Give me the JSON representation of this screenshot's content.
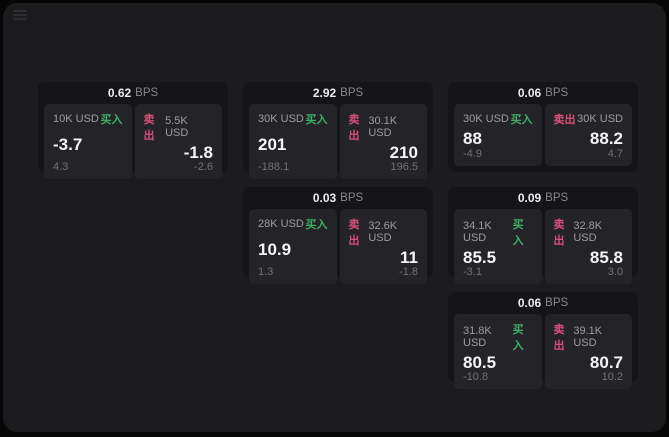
{
  "labels": {
    "bps": "BPS",
    "buy": "买入",
    "sell": "卖出"
  },
  "colors": {
    "background": "#060606",
    "panel": "#1c1c1e",
    "card": "#151517",
    "subpanel": "#242428",
    "buy_accent": "#3fae6a",
    "sell_accent": "#d84f78"
  },
  "icons": {
    "menu": "hamburger-menu"
  },
  "cards": [
    {
      "bps": "0.62",
      "buy": {
        "amount": "10K USD",
        "value": "-3.7",
        "sub": "4.3"
      },
      "sell": {
        "amount": "5.5K USD",
        "value": "-1.8",
        "sub": "-2.6"
      }
    },
    {
      "bps": "2.92",
      "buy": {
        "amount": "30K USD",
        "value": "201",
        "sub": "-188.1"
      },
      "sell": {
        "amount": "30.1K USD",
        "value": "210",
        "sub": "196.5"
      }
    },
    {
      "bps": "0.06",
      "buy": {
        "amount": "30K USD",
        "value": "88",
        "sub": "-4.9"
      },
      "sell": {
        "amount": "30K USD",
        "value": "88.2",
        "sub": "4.7"
      }
    },
    {
      "bps": "0.03",
      "buy": {
        "amount": "28K USD",
        "value": "10.9",
        "sub": "1.3"
      },
      "sell": {
        "amount": "32.6K USD",
        "value": "11",
        "sub": "-1.8"
      }
    },
    {
      "bps": "0.09",
      "buy": {
        "amount": "34.1K USD",
        "value": "85.5",
        "sub": "-3.1"
      },
      "sell": {
        "amount": "32.8K USD",
        "value": "85.8",
        "sub": "3.0"
      }
    },
    {
      "bps": "0.06",
      "buy": {
        "amount": "31.8K USD",
        "value": "80.5",
        "sub": "-10.8"
      },
      "sell": {
        "amount": "39.1K USD",
        "value": "80.7",
        "sub": "10.2"
      }
    }
  ]
}
